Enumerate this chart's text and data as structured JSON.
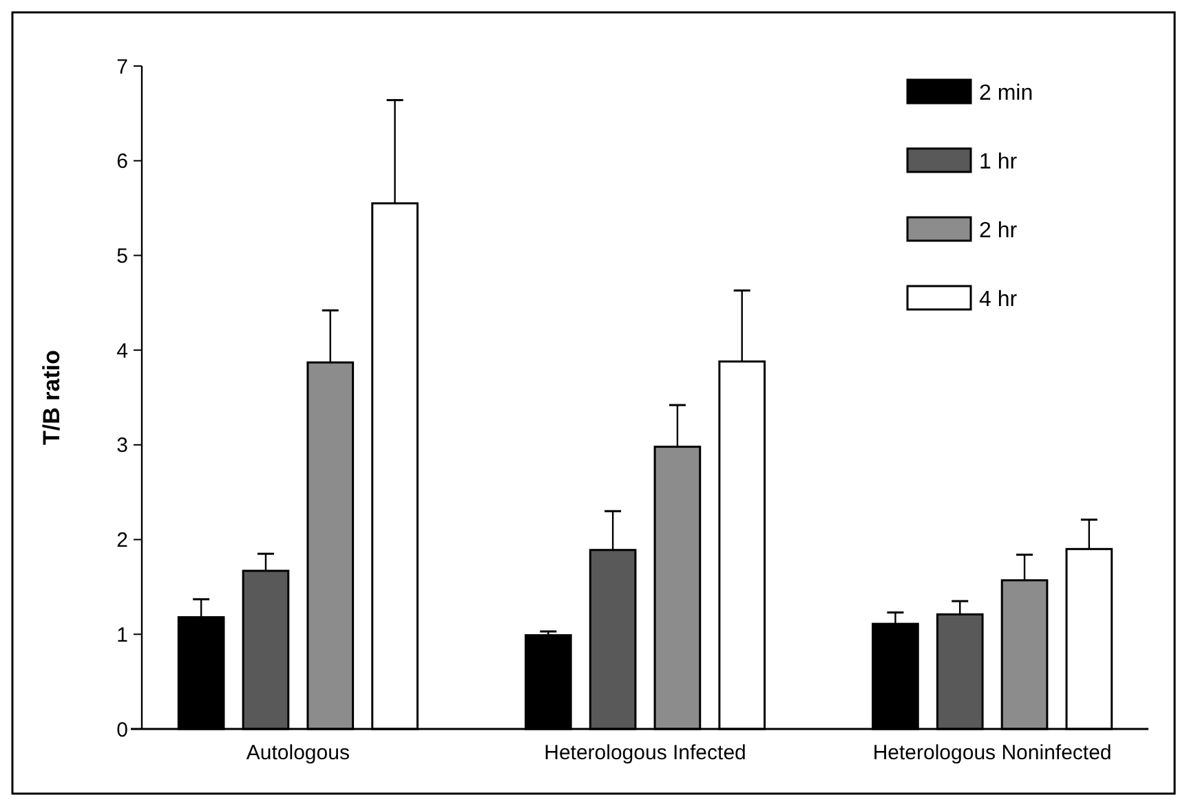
{
  "chart_data": {
    "type": "bar",
    "ylabel": "T/B ratio",
    "categories": [
      "Autologous",
      "Heterologous Infected",
      "Heterologous Noninfected"
    ],
    "series": [
      {
        "name": "2 min",
        "color": "#000000",
        "values": [
          1.18,
          0.99,
          1.11
        ],
        "errors": [
          [
            1.18,
            1.37
          ],
          [
            0.99,
            1.03
          ],
          [
            1.11,
            1.23
          ]
        ]
      },
      {
        "name": "1 hr",
        "color": "#595959",
        "values": [
          1.67,
          1.89,
          1.21
        ],
        "errors": [
          [
            1.67,
            1.85
          ],
          [
            1.89,
            2.3
          ],
          [
            1.21,
            1.35
          ]
        ]
      },
      {
        "name": "2 hr",
        "color": "#8c8c8c",
        "values": [
          3.87,
          2.98,
          1.57
        ],
        "errors": [
          [
            3.87,
            4.42
          ],
          [
            2.98,
            3.42
          ],
          [
            1.57,
            1.84
          ]
        ]
      },
      {
        "name": "4 hr",
        "color": "#ffffff",
        "values": [
          5.55,
          3.88,
          1.9
        ],
        "errors": [
          [
            5.55,
            6.64
          ],
          [
            3.88,
            4.63
          ],
          [
            1.9,
            2.21
          ]
        ]
      }
    ],
    "ylim": [
      0,
      7
    ],
    "yticks": [
      0,
      1,
      2,
      3,
      4,
      5,
      6,
      7
    ],
    "grid": false,
    "legend": "top right"
  }
}
